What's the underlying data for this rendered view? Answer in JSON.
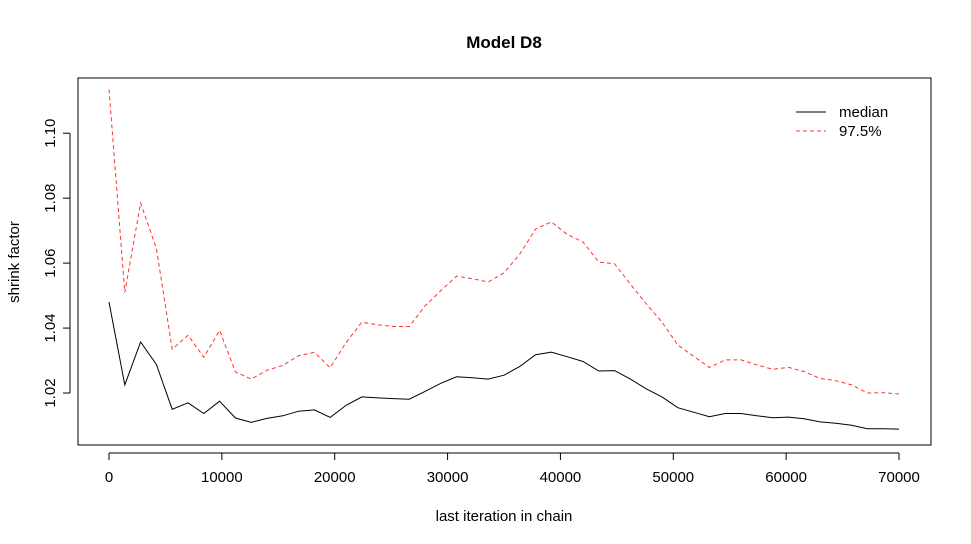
{
  "chart_data": {
    "type": "line",
    "title": "Model D8",
    "xlabel": "last iteration in chain",
    "ylabel": "shrink factor",
    "xlim": [
      0,
      70000
    ],
    "ylim": [
      1.004,
      1.117
    ],
    "x_ticks": [
      0,
      10000,
      20000,
      30000,
      40000,
      50000,
      60000,
      70000
    ],
    "x_tick_labels": [
      "0",
      "10000",
      "20000",
      "30000",
      "40000",
      "50000",
      "60000",
      "70000"
    ],
    "y_ticks": [
      1.02,
      1.04,
      1.06,
      1.08,
      1.1
    ],
    "y_tick_labels": [
      "1.02",
      "1.04",
      "1.06",
      "1.08",
      "1.10"
    ],
    "grid": false,
    "legend_position": "top-right",
    "x": [
      0,
      1400,
      2800,
      4200,
      5600,
      7000,
      8400,
      9800,
      11200,
      12600,
      14000,
      15400,
      16800,
      18200,
      19600,
      21000,
      22400,
      23800,
      25200,
      26600,
      28000,
      29400,
      30800,
      32200,
      33600,
      35000,
      36400,
      37800,
      39200,
      40600,
      42000,
      43400,
      44800,
      46200,
      47600,
      49000,
      50400,
      51800,
      53200,
      54600,
      56000,
      57400,
      58800,
      60200,
      61600,
      63000,
      64400,
      65800,
      67200,
      68600,
      70000
    ],
    "series": [
      {
        "name": "median",
        "color": "#000000",
        "dash": "solid",
        "values": [
          1.048,
          1.0225,
          1.0357,
          1.0288,
          1.015,
          1.017,
          1.0137,
          1.0175,
          1.0123,
          1.011,
          1.0122,
          1.013,
          1.0144,
          1.0148,
          1.0125,
          1.0162,
          1.0188,
          1.0185,
          1.0183,
          1.0181,
          1.0205,
          1.023,
          1.025,
          1.0247,
          1.0243,
          1.0255,
          1.0282,
          1.0318,
          1.0326,
          1.0312,
          1.0297,
          1.0268,
          1.0269,
          1.0243,
          1.0213,
          1.0188,
          1.0155,
          1.0141,
          1.0127,
          1.0137,
          1.0137,
          1.013,
          1.0124,
          1.0126,
          1.0121,
          1.0111,
          1.0107,
          1.0101,
          1.009,
          1.009,
          1.0089
        ]
      },
      {
        "name": "97.5%",
        "color": "#ff3333",
        "dash": "dashed",
        "values": [
          1.1135,
          1.051,
          1.0785,
          1.0645,
          1.0335,
          1.0378,
          1.031,
          1.0393,
          1.0265,
          1.0243,
          1.027,
          1.0285,
          1.0315,
          1.0325,
          1.0278,
          1.0355,
          1.0418,
          1.041,
          1.0405,
          1.0405,
          1.0468,
          1.0515,
          1.056,
          1.0552,
          1.0542,
          1.057,
          1.0628,
          1.0705,
          1.0727,
          1.0688,
          1.0665,
          1.0603,
          1.0598,
          1.0535,
          1.0475,
          1.0418,
          1.0348,
          1.0313,
          1.0279,
          1.0302,
          1.0302,
          1.0287,
          1.0273,
          1.0279,
          1.0266,
          1.0245,
          1.0238,
          1.0225,
          1.02,
          1.0201,
          1.0197
        ]
      }
    ]
  }
}
